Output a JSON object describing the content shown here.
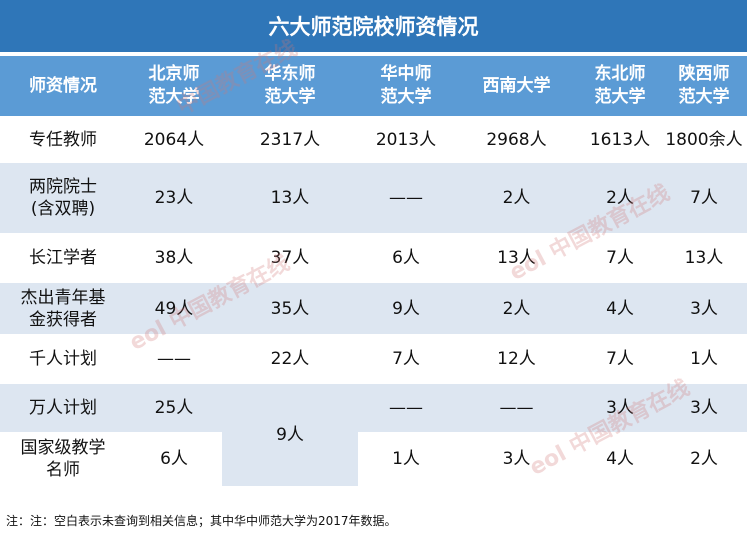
{
  "title": "六大师范院校师资情况",
  "header": [
    "师资情况",
    "北京师\n范大学",
    "华东师\n范大学",
    "华中师\n范大学",
    "西南大学",
    "东北师\n范大学",
    "陕西师\n范大学"
  ],
  "rows": [
    {
      "label": "专任教师",
      "values": [
        "2064人",
        "2317人",
        "2013人",
        "2968人",
        "1613人",
        "1800余人"
      ]
    },
    {
      "label": "两院院士\n(含双聘)",
      "values": [
        "23人",
        "13人",
        "——",
        "2人",
        "2人",
        "7人"
      ]
    },
    {
      "label": "长江学者",
      "values": [
        "38人",
        "37人",
        "6人",
        "13人",
        "7人",
        "13人"
      ]
    },
    {
      "label": "杰出青年基\n金获得者",
      "values": [
        "49人",
        "35人",
        "9人",
        "2人",
        "4人",
        "3人"
      ]
    },
    {
      "label": "千人计划",
      "values": [
        "——",
        "22人",
        "7人",
        "12人",
        "7人",
        "1人"
      ]
    },
    {
      "label": "万人计划",
      "values": [
        "25人",
        "",
        "——",
        "——",
        "3人",
        "3人"
      ]
    },
    {
      "label": "国家级教学\n名师",
      "values": [
        "6人",
        "",
        "1人",
        "3人",
        "4人",
        "2人"
      ]
    }
  ],
  "merged_cell": "9人",
  "note": "注：注：空白表示未查询到相关信息；其中华中师范大学为2017年数据。",
  "watermark": {
    "brand": "eol",
    "text": "中国教育在线",
    "url": "www.eol.cn"
  }
}
